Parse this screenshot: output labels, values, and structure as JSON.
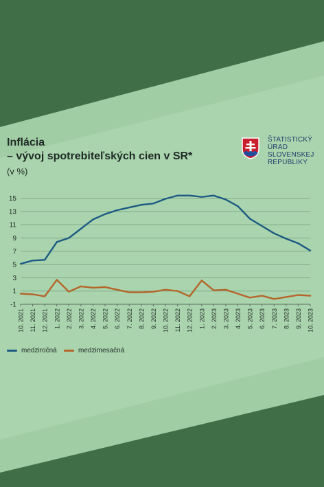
{
  "title_line1": "Inflácia",
  "title_line2": "– vývoj spotrebiteľských cien v SR*",
  "unit_label": "(v %)",
  "logo": {
    "line1": "ŠTATISTICKÝ",
    "line2": "ÚRAD",
    "line3": "SLOVENSKEJ",
    "line4": "REPUBLIKY"
  },
  "colors": {
    "background_band": "#a9d4ad",
    "dark_green": "#3f6e47",
    "series_yoy": "#1c5a83",
    "series_mom": "#b5652a"
  },
  "chart_data": {
    "type": "line",
    "categories": [
      "10. 2021",
      "11. 2021",
      "12. 2021",
      "1. 2022",
      "2. 2022",
      "3. 2022",
      "4. 2022",
      "5. 2022",
      "6. 2022",
      "7. 2022",
      "8. 2022",
      "9. 2022",
      "10. 2022",
      "11. 2022",
      "12. 2022",
      "1. 2023",
      "2. 2023",
      "3. 2023",
      "4. 2023",
      "5. 2023",
      "6. 2023",
      "7. 2023",
      "8. 2023",
      "9. 2023",
      "10. 2023"
    ],
    "series": [
      {
        "name": "medziročná",
        "color": "#1c5a83",
        "values": [
          5.1,
          5.6,
          5.7,
          8.4,
          9.0,
          10.4,
          11.8,
          12.6,
          13.2,
          13.6,
          14.0,
          14.2,
          14.9,
          15.4,
          15.4,
          15.2,
          15.4,
          14.8,
          13.8,
          11.9,
          10.8,
          9.7,
          8.9,
          8.2,
          7.1
        ]
      },
      {
        "name": "medzimesačná",
        "color": "#b5652a",
        "values": [
          0.6,
          0.5,
          0.2,
          2.7,
          0.9,
          1.7,
          1.5,
          1.6,
          1.2,
          0.8,
          0.8,
          0.9,
          1.2,
          1.0,
          0.2,
          2.6,
          1.1,
          1.2,
          0.6,
          0.0,
          0.3,
          -0.2,
          0.1,
          0.4,
          0.3
        ]
      }
    ],
    "yticks": [
      -1,
      1,
      3,
      5,
      7,
      9,
      11,
      13,
      15
    ],
    "ylim": [
      -1,
      16.2
    ],
    "grid": true,
    "legend_position": "bottom-left"
  }
}
